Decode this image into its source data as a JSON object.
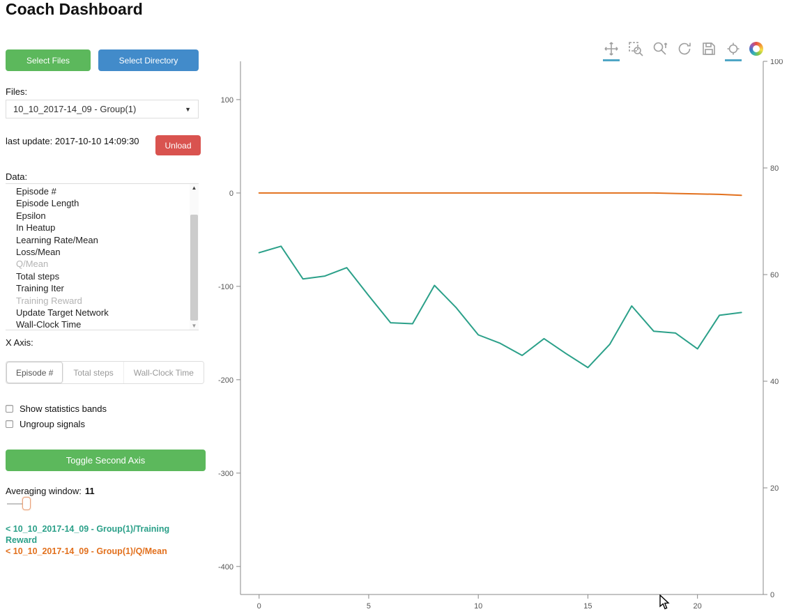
{
  "page": {
    "title": "Coach Dashboard"
  },
  "sidebar": {
    "select_files_label": "Select Files",
    "select_directory_label": "Select Directory",
    "files_label": "Files:",
    "files_selected": "10_10_2017-14_09 - Group(1)",
    "last_update": "last update: 2017-10-10 14:09:30",
    "unload_label": "Unload",
    "data_label": "Data:",
    "data_items": [
      {
        "label": "Episode #",
        "muted": false
      },
      {
        "label": "Episode Length",
        "muted": false
      },
      {
        "label": "Epsilon",
        "muted": false
      },
      {
        "label": "In Heatup",
        "muted": false
      },
      {
        "label": "Learning Rate/Mean",
        "muted": false
      },
      {
        "label": "Loss/Mean",
        "muted": false
      },
      {
        "label": "Q/Mean",
        "muted": true
      },
      {
        "label": "Total steps",
        "muted": false
      },
      {
        "label": "Training Iter",
        "muted": false
      },
      {
        "label": "Training Reward",
        "muted": true
      },
      {
        "label": "Update Target Network",
        "muted": false
      },
      {
        "label": "Wall-Clock Time",
        "muted": false
      }
    ],
    "x_axis_label": "X Axis:",
    "x_axis_options": [
      {
        "label": "Episode #",
        "active": true
      },
      {
        "label": "Total steps",
        "active": false
      },
      {
        "label": "Wall-Clock Time",
        "active": false
      }
    ],
    "checkboxes": [
      {
        "label": "Show statistics bands",
        "checked": false
      },
      {
        "label": "Ungroup signals",
        "checked": false
      }
    ],
    "toggle_second_axis_label": "Toggle Second Axis",
    "averaging_window_label": "Averaging window:",
    "averaging_window_value": "11",
    "legend": [
      {
        "label": "< 10_10_2017-14_09 - Group(1)/Training Reward",
        "color": "#2ba089"
      },
      {
        "label": "< 10_10_2017-14_09 - Group(1)/Q/Mean",
        "color": "#e2701d"
      }
    ]
  },
  "toolbar": {
    "icons": [
      {
        "name": "pan-icon",
        "active": true
      },
      {
        "name": "box-zoom-icon",
        "active": false
      },
      {
        "name": "wheel-zoom-icon",
        "active": false
      },
      {
        "name": "reset-icon",
        "active": false
      },
      {
        "name": "save-icon",
        "active": false
      },
      {
        "name": "hover-icon",
        "active": true
      },
      {
        "name": "bokeh-logo",
        "active": false
      }
    ]
  },
  "chart_data": {
    "type": "line",
    "title": "",
    "xlabel": "",
    "ylabel": "",
    "grid": false,
    "legend_position": "none",
    "x": [
      0,
      1,
      2,
      3,
      4,
      5,
      6,
      7,
      8,
      9,
      10,
      11,
      12,
      13,
      14,
      15,
      16,
      17,
      18,
      19,
      20,
      21,
      22
    ],
    "x_ticks": [
      0,
      5,
      10,
      15,
      20
    ],
    "xlim": [
      -0.85,
      23.0
    ],
    "left_ylim": [
      -430,
      141
    ],
    "left_ticks": [
      100,
      0,
      -100,
      -200,
      -300,
      -400
    ],
    "right_ylim": [
      0,
      100
    ],
    "right_ticks": [
      0,
      20,
      40,
      60,
      80,
      100
    ],
    "series": [
      {
        "name": "10_10_2017-14_09 - Group(1)/Training Reward",
        "color": "#2ba089",
        "axis": "left",
        "values": [
          -64,
          -57,
          -92,
          -89,
          -80,
          -110,
          -139,
          -140,
          -99,
          -123,
          -152,
          -161,
          -174,
          -156,
          -172,
          -187,
          -162,
          -121,
          -148,
          -150,
          -167,
          -131,
          -128
        ]
      },
      {
        "name": "10_10_2017-14_09 - Group(1)/Q/Mean",
        "color": "#e2701d",
        "axis": "left",
        "values": [
          0,
          0,
          0,
          0,
          0,
          0,
          0,
          0,
          0,
          0,
          0,
          0,
          0,
          0,
          0,
          0,
          0,
          0,
          0,
          -0.5,
          -1,
          -1.5,
          -2.5
        ]
      }
    ]
  }
}
